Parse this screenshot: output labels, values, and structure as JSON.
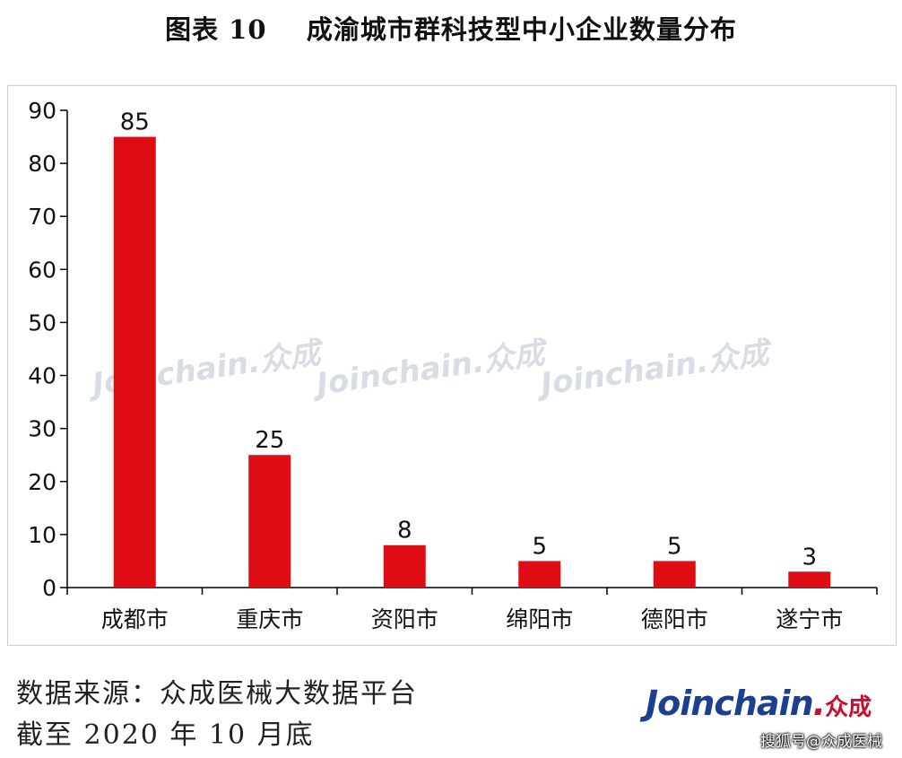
{
  "title": "图表 10    成渝城市群科技型中小企业数量分布",
  "chart_data": {
    "type": "bar",
    "categories": [
      "成都市",
      "重庆市",
      "资阳市",
      "绵阳市",
      "德阳市",
      "遂宁市"
    ],
    "values": [
      85,
      25,
      8,
      5,
      5,
      3
    ],
    "data_labels": [
      "85",
      "25",
      "8",
      "5",
      "5",
      "3"
    ],
    "yticks": [
      "0",
      "10",
      "20",
      "30",
      "40",
      "50",
      "60",
      "70",
      "80",
      "90"
    ],
    "ylim": [
      0,
      90
    ],
    "xlabel": "",
    "ylabel": "",
    "bar_color": "#e00c14",
    "grid": false,
    "legend": "none"
  },
  "watermark": {
    "text": "Joinchain.众成",
    "color": "#c7cdd8"
  },
  "source": {
    "line1": "数据来源：众成医械大数据平台",
    "line2": "截至 2020 年 10 月底"
  },
  "logo": {
    "main": "Joinchain",
    "dot": ".",
    "cn": "众成"
  },
  "credit": "搜狐号@众成医械"
}
